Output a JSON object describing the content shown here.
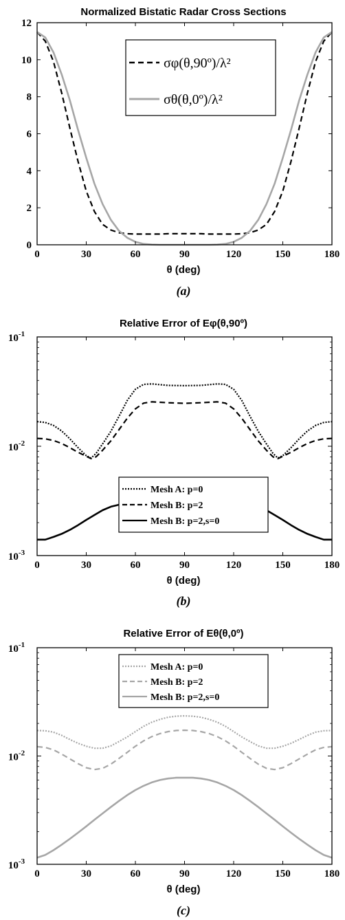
{
  "chart_data": [
    {
      "type": "line",
      "title": "Normalized Bistatic Radar Cross Sections",
      "xlabel": "θ (deg)",
      "ylabel": "",
      "caption": "(a)",
      "xlim": [
        0,
        180
      ],
      "ylim": [
        0,
        12
      ],
      "xticks": [
        "0",
        "30",
        "60",
        "90",
        "120",
        "150",
        "180"
      ],
      "yticks": [
        "0",
        "2",
        "4",
        "6",
        "8",
        "10",
        "12"
      ],
      "grid": false,
      "legend_position": "top-center",
      "series": [
        {
          "name": "σφ(θ,90º)/λ²",
          "style": "dashed",
          "color": "#000000",
          "x": [
            0,
            5,
            10,
            15,
            20,
            25,
            30,
            35,
            40,
            45,
            50,
            55,
            60,
            65,
            70,
            75,
            80,
            85,
            90,
            95,
            100,
            105,
            110,
            115,
            120,
            125,
            130,
            135,
            140,
            145,
            150,
            155,
            160,
            165,
            170,
            175,
            180
          ],
          "y": [
            11.5,
            11.0,
            9.9,
            8.2,
            6.3,
            4.5,
            2.9,
            1.8,
            1.1,
            0.8,
            0.65,
            0.6,
            0.58,
            0.58,
            0.58,
            0.58,
            0.6,
            0.6,
            0.6,
            0.6,
            0.6,
            0.58,
            0.58,
            0.58,
            0.58,
            0.6,
            0.65,
            0.8,
            1.1,
            1.8,
            2.9,
            4.5,
            6.3,
            8.2,
            9.9,
            11.0,
            11.5
          ]
        },
        {
          "name": "σθ(θ,0º)/λ²",
          "style": "solid",
          "color": "#a6a6a6",
          "x": [
            0,
            5,
            10,
            15,
            20,
            25,
            30,
            35,
            40,
            45,
            50,
            55,
            60,
            65,
            70,
            75,
            80,
            85,
            90,
            95,
            100,
            105,
            110,
            115,
            120,
            125,
            130,
            135,
            140,
            145,
            150,
            155,
            160,
            165,
            170,
            175,
            180
          ],
          "y": [
            11.5,
            11.2,
            10.4,
            9.2,
            7.8,
            6.2,
            4.7,
            3.3,
            2.2,
            1.35,
            0.75,
            0.38,
            0.16,
            0.05,
            0.01,
            0.0,
            0.0,
            0.0,
            0.0,
            0.0,
            0.0,
            0.0,
            0.01,
            0.05,
            0.16,
            0.38,
            0.75,
            1.35,
            2.2,
            3.3,
            4.7,
            6.2,
            7.8,
            9.2,
            10.4,
            11.2,
            11.5
          ]
        }
      ]
    },
    {
      "type": "line",
      "title": "Relative Error of Eφ(θ,90º)",
      "xlabel": "θ (deg)",
      "ylabel": "",
      "caption": "(b)",
      "xlim": [
        0,
        180
      ],
      "ylim": [
        0.001,
        0.1
      ],
      "yscale": "log",
      "xticks": [
        "0",
        "30",
        "60",
        "90",
        "120",
        "150",
        "180"
      ],
      "yticks": [
        "10-3",
        "10-2",
        "10-1"
      ],
      "grid": false,
      "legend_position": "middle-center",
      "series": [
        {
          "name": "Mesh A: p=0",
          "style": "dotted",
          "color": "#000000",
          "x": [
            0,
            5,
            10,
            15,
            20,
            25,
            30,
            33,
            36,
            40,
            45,
            50,
            55,
            60,
            65,
            70,
            80,
            90,
            100,
            110,
            115,
            120,
            125,
            130,
            135,
            140,
            144,
            147,
            150,
            155,
            160,
            165,
            170,
            175,
            180
          ],
          "y": [
            0.0168,
            0.0165,
            0.0155,
            0.0138,
            0.0117,
            0.0097,
            0.0082,
            0.0078,
            0.0086,
            0.0105,
            0.0137,
            0.0188,
            0.0262,
            0.0332,
            0.0368,
            0.0372,
            0.036,
            0.0358,
            0.036,
            0.0372,
            0.0368,
            0.0332,
            0.0262,
            0.0188,
            0.0137,
            0.0105,
            0.0086,
            0.0078,
            0.0082,
            0.0097,
            0.0117,
            0.0138,
            0.0155,
            0.0165,
            0.0168
          ]
        },
        {
          "name": "Mesh B: p=2",
          "style": "dashed",
          "color": "#000000",
          "x": [
            0,
            5,
            10,
            15,
            20,
            25,
            30,
            33,
            36,
            40,
            45,
            50,
            55,
            60,
            65,
            70,
            80,
            90,
            100,
            110,
            115,
            120,
            125,
            130,
            135,
            140,
            144,
            147,
            150,
            155,
            160,
            165,
            170,
            175,
            180
          ],
          "y": [
            0.0118,
            0.0117,
            0.0113,
            0.0106,
            0.0097,
            0.0088,
            0.0081,
            0.0077,
            0.008,
            0.0092,
            0.0112,
            0.0142,
            0.018,
            0.022,
            0.0248,
            0.0255,
            0.025,
            0.0247,
            0.025,
            0.0255,
            0.0248,
            0.022,
            0.018,
            0.0142,
            0.0112,
            0.0092,
            0.008,
            0.0077,
            0.0081,
            0.0088,
            0.0097,
            0.0106,
            0.0113,
            0.0117,
            0.0118
          ]
        },
        {
          "name": "Mesh B: p=2,s=0",
          "style": "solid",
          "color": "#000000",
          "x": [
            0,
            5,
            10,
            15,
            20,
            25,
            30,
            35,
            40,
            45,
            50,
            55,
            60,
            65,
            70,
            75,
            80,
            85,
            90,
            95,
            100,
            105,
            110,
            115,
            120,
            125,
            130,
            135,
            140,
            145,
            150,
            155,
            160,
            165,
            170,
            175,
            180
          ],
          "y": [
            0.0014,
            0.0014,
            0.00148,
            0.00158,
            0.00172,
            0.0019,
            0.00212,
            0.00235,
            0.0026,
            0.0028,
            0.00292,
            0.003,
            0.00292,
            0.00272,
            0.00242,
            0.0021,
            0.00192,
            0.00182,
            0.00178,
            0.00182,
            0.00192,
            0.0021,
            0.00242,
            0.00272,
            0.00292,
            0.003,
            0.00292,
            0.0028,
            0.0026,
            0.00235,
            0.00212,
            0.0019,
            0.00172,
            0.00158,
            0.00148,
            0.0014,
            0.0014
          ]
        }
      ]
    },
    {
      "type": "line",
      "title": "Relative Error of Eθ(θ,0º)",
      "xlabel": "θ (deg)",
      "ylabel": "",
      "caption": "(c)",
      "xlim": [
        0,
        180
      ],
      "ylim": [
        0.001,
        0.1
      ],
      "yscale": "log",
      "xticks": [
        "0",
        "30",
        "60",
        "90",
        "120",
        "150",
        "180"
      ],
      "yticks": [
        "10-3",
        "10-2",
        "10-1"
      ],
      "grid": false,
      "legend_position": "top-center",
      "series": [
        {
          "name": "Mesh A: p=0",
          "style": "dotted",
          "color": "#a6a6a6",
          "x": [
            0,
            5,
            10,
            15,
            20,
            25,
            30,
            35,
            40,
            45,
            50,
            55,
            60,
            65,
            70,
            75,
            80,
            85,
            90,
            95,
            100,
            105,
            110,
            115,
            120,
            125,
            130,
            135,
            140,
            145,
            150,
            155,
            160,
            165,
            170,
            175,
            180
          ],
          "y": [
            0.0172,
            0.0171,
            0.0166,
            0.0155,
            0.0142,
            0.0131,
            0.0123,
            0.0118,
            0.0118,
            0.0124,
            0.0136,
            0.015,
            0.0168,
            0.0188,
            0.0205,
            0.0218,
            0.0228,
            0.0233,
            0.0235,
            0.0233,
            0.0228,
            0.0218,
            0.0205,
            0.0188,
            0.0168,
            0.015,
            0.0136,
            0.0124,
            0.0118,
            0.0118,
            0.0123,
            0.0131,
            0.0142,
            0.0155,
            0.0166,
            0.0171,
            0.0172
          ]
        },
        {
          "name": "Mesh B: p=2",
          "style": "dashed",
          "color": "#a6a6a6",
          "x": [
            0,
            5,
            10,
            15,
            20,
            25,
            30,
            35,
            40,
            45,
            50,
            55,
            60,
            65,
            70,
            75,
            80,
            85,
            90,
            95,
            100,
            105,
            110,
            115,
            120,
            125,
            130,
            135,
            140,
            145,
            150,
            155,
            160,
            165,
            170,
            175,
            180
          ],
          "y": [
            0.0122,
            0.012,
            0.0114,
            0.0104,
            0.0094,
            0.0085,
            0.0078,
            0.0075,
            0.0077,
            0.0084,
            0.0095,
            0.0108,
            0.0123,
            0.0138,
            0.0151,
            0.0161,
            0.0168,
            0.0172,
            0.0173,
            0.0172,
            0.0168,
            0.0161,
            0.0151,
            0.0138,
            0.0123,
            0.0108,
            0.0095,
            0.0084,
            0.0077,
            0.0075,
            0.0078,
            0.0085,
            0.0094,
            0.0104,
            0.0114,
            0.012,
            0.0122
          ]
        },
        {
          "name": "Mesh B: p=2,s=0",
          "style": "solid",
          "color": "#a6a6a6",
          "x": [
            0,
            5,
            10,
            15,
            20,
            25,
            30,
            35,
            40,
            45,
            50,
            55,
            60,
            65,
            70,
            75,
            80,
            85,
            90,
            95,
            100,
            105,
            110,
            115,
            120,
            125,
            130,
            135,
            140,
            145,
            150,
            155,
            160,
            165,
            170,
            175,
            180
          ],
          "y": [
            0.00115,
            0.00122,
            0.00135,
            0.00152,
            0.00172,
            0.00196,
            0.00224,
            0.00258,
            0.00295,
            0.00338,
            0.00385,
            0.00435,
            0.00485,
            0.0053,
            0.0057,
            0.006,
            0.0062,
            0.0063,
            0.0063,
            0.0063,
            0.0062,
            0.006,
            0.0057,
            0.0053,
            0.00485,
            0.00435,
            0.00385,
            0.00338,
            0.00295,
            0.00258,
            0.00224,
            0.00196,
            0.00172,
            0.00152,
            0.00135,
            0.00122,
            0.00115
          ]
        }
      ]
    }
  ]
}
